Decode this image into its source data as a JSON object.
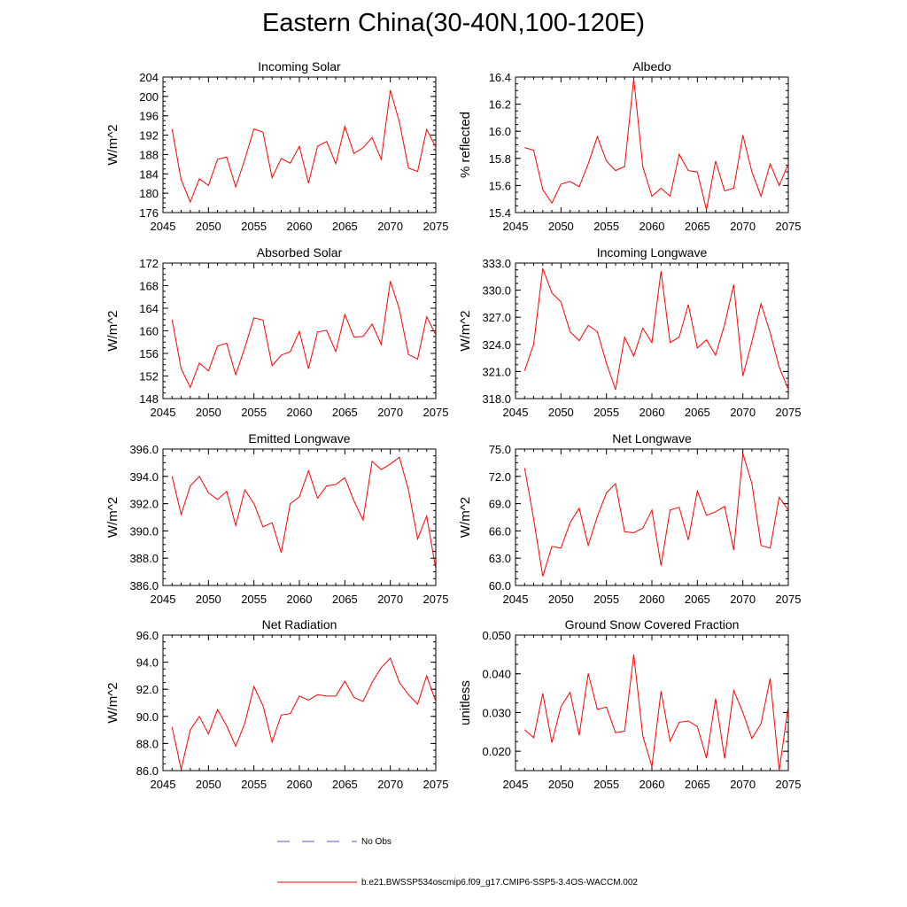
{
  "title": "Eastern China(30-40N,100-120E)",
  "chart_data": [
    {
      "type": "line",
      "title": "Incoming Solar",
      "ylabel": "W/m^2",
      "x": [
        2046,
        2047,
        2048,
        2049,
        2050,
        2051,
        2052,
        2053,
        2054,
        2055,
        2056,
        2057,
        2058,
        2059,
        2060,
        2061,
        2062,
        2063,
        2064,
        2065,
        2066,
        2067,
        2068,
        2069,
        2070,
        2071,
        2072,
        2073,
        2074,
        2075
      ],
      "series": [
        {
          "name": "b.e21.BWSSP534oscmip6.f09_g17.CMIP6-SSP5-3.4OS-WACCM.002",
          "values": [
            193.2,
            182.8,
            178.2,
            183.0,
            181.6,
            187.0,
            187.5,
            181.3,
            187.0,
            193.3,
            192.6,
            183.2,
            187.2,
            186.2,
            189.7,
            182.1,
            189.7,
            190.7,
            186.1,
            193.8,
            188.2,
            189.4,
            191.5,
            187.0,
            201.3,
            194.7,
            185.2,
            184.5,
            193.2,
            189.5
          ]
        }
      ],
      "xlim": [
        2045,
        2075
      ],
      "ylim": [
        176,
        204
      ],
      "yticks": [
        "176",
        "180",
        "184",
        "188",
        "192",
        "196",
        "200",
        "204"
      ]
    },
    {
      "type": "line",
      "title": "Albedo",
      "ylabel": "% reflected",
      "x": [
        2046,
        2047,
        2048,
        2049,
        2050,
        2051,
        2052,
        2053,
        2054,
        2055,
        2056,
        2057,
        2058,
        2059,
        2060,
        2061,
        2062,
        2063,
        2064,
        2065,
        2066,
        2067,
        2068,
        2069,
        2070,
        2071,
        2072,
        2073,
        2074,
        2075
      ],
      "series": [
        {
          "name": "b.e21.BWSSP534oscmip6.f09_g17.CMIP6-SSP5-3.4OS-WACCM.002",
          "values": [
            15.88,
            15.86,
            15.57,
            15.47,
            15.61,
            15.63,
            15.59,
            15.76,
            15.96,
            15.78,
            15.71,
            15.74,
            16.39,
            15.74,
            15.52,
            15.58,
            15.52,
            15.83,
            15.71,
            15.7,
            15.42,
            15.78,
            15.56,
            15.58,
            15.97,
            15.7,
            15.52,
            15.76,
            15.6,
            15.76
          ]
        }
      ],
      "xlim": [
        2045,
        2075
      ],
      "ylim": [
        15.4,
        16.4
      ],
      "yticks": [
        "15.4",
        "15.6",
        "15.8",
        "16.0",
        "16.2",
        "16.4"
      ]
    },
    {
      "type": "line",
      "title": "Absorbed Solar",
      "ylabel": "W/m^2",
      "x": [
        2046,
        2047,
        2048,
        2049,
        2050,
        2051,
        2052,
        2053,
        2054,
        2055,
        2056,
        2057,
        2058,
        2059,
        2060,
        2061,
        2062,
        2063,
        2064,
        2065,
        2066,
        2067,
        2068,
        2069,
        2070,
        2071,
        2072,
        2073,
        2074,
        2075
      ],
      "series": [
        {
          "name": "b.e21.BWSSP534oscmip6.f09_g17.CMIP6-SSP5-3.4OS-WACCM.002",
          "values": [
            162.0,
            153.3,
            150.0,
            154.3,
            152.9,
            157.3,
            157.8,
            152.2,
            157.0,
            162.3,
            161.9,
            153.8,
            155.7,
            156.3,
            159.9,
            153.3,
            159.8,
            160.1,
            156.3,
            162.9,
            158.9,
            159.0,
            161.2,
            157.6,
            168.8,
            163.8,
            155.8,
            155.0,
            162.5,
            159.3
          ]
        }
      ],
      "xlim": [
        2045,
        2075
      ],
      "ylim": [
        148,
        172
      ],
      "yticks": [
        "148",
        "152",
        "156",
        "160",
        "164",
        "168",
        "172"
      ]
    },
    {
      "type": "line",
      "title": "Incoming Longwave",
      "ylabel": "W/m^2",
      "x": [
        2046,
        2047,
        2048,
        2049,
        2050,
        2051,
        2052,
        2053,
        2054,
        2055,
        2056,
        2057,
        2058,
        2059,
        2060,
        2061,
        2062,
        2063,
        2064,
        2065,
        2066,
        2067,
        2068,
        2069,
        2070,
        2071,
        2072,
        2073,
        2074,
        2075
      ],
      "series": [
        {
          "name": "b.e21.BWSSP534oscmip6.f09_g17.CMIP6-SSP5-3.4OS-WACCM.002",
          "values": [
            321.1,
            324.0,
            332.4,
            329.7,
            328.7,
            325.4,
            324.4,
            326.1,
            325.4,
            321.9,
            319.0,
            324.8,
            322.7,
            325.8,
            324.2,
            332.1,
            324.2,
            324.8,
            328.4,
            323.6,
            324.5,
            322.8,
            326.2,
            330.6,
            320.5,
            324.3,
            328.5,
            325.3,
            321.5,
            319.0
          ]
        }
      ],
      "xlim": [
        2045,
        2075
      ],
      "ylim": [
        318.0,
        333.0
      ],
      "yticks": [
        "318.0",
        "321.0",
        "324.0",
        "327.0",
        "330.0",
        "333.0"
      ]
    },
    {
      "type": "line",
      "title": "Emitted Longwave",
      "ylabel": "W/m^2",
      "x": [
        2046,
        2047,
        2048,
        2049,
        2050,
        2051,
        2052,
        2053,
        2054,
        2055,
        2056,
        2057,
        2058,
        2059,
        2060,
        2061,
        2062,
        2063,
        2064,
        2065,
        2066,
        2067,
        2068,
        2069,
        2070,
        2071,
        2072,
        2073,
        2074,
        2075
      ],
      "series": [
        {
          "name": "b.e21.BWSSP534oscmip6.f09_g17.CMIP6-SSP5-3.4OS-WACCM.002",
          "values": [
            394.0,
            391.2,
            393.3,
            394.0,
            392.8,
            392.3,
            392.9,
            390.4,
            393.0,
            392.0,
            390.3,
            390.6,
            388.4,
            392.0,
            392.5,
            394.4,
            392.4,
            393.3,
            393.4,
            393.9,
            392.2,
            390.8,
            395.1,
            394.5,
            394.9,
            395.4,
            393.0,
            389.4,
            391.1,
            387.2
          ]
        }
      ],
      "xlim": [
        2045,
        2075
      ],
      "ylim": [
        386.0,
        396.0
      ],
      "yticks": [
        "386.0",
        "388.0",
        "390.0",
        "392.0",
        "394.0",
        "396.0"
      ]
    },
    {
      "type": "line",
      "title": "Net Longwave",
      "ylabel": "W/m^2",
      "x": [
        2046,
        2047,
        2048,
        2049,
        2050,
        2051,
        2052,
        2053,
        2054,
        2055,
        2056,
        2057,
        2058,
        2059,
        2060,
        2061,
        2062,
        2063,
        2064,
        2065,
        2066,
        2067,
        2068,
        2069,
        2070,
        2071,
        2072,
        2073,
        2074,
        2075
      ],
      "series": [
        {
          "name": "b.e21.BWSSP534oscmip6.f09_g17.CMIP6-SSP5-3.4OS-WACCM.002",
          "values": [
            72.9,
            67.3,
            61.0,
            64.3,
            64.1,
            66.9,
            68.5,
            64.4,
            67.6,
            70.2,
            71.2,
            65.9,
            65.8,
            66.3,
            68.3,
            62.2,
            68.3,
            68.6,
            65.0,
            70.4,
            67.7,
            68.1,
            68.7,
            63.9,
            74.5,
            71.2,
            64.4,
            64.1,
            69.7,
            68.3
          ]
        }
      ],
      "xlim": [
        2045,
        2075
      ],
      "ylim": [
        60.0,
        75.0
      ],
      "yticks": [
        "60.0",
        "63.0",
        "66.0",
        "69.0",
        "72.0",
        "75.0"
      ]
    },
    {
      "type": "line",
      "title": "Net Radiation",
      "ylabel": "W/m^2",
      "x": [
        2046,
        2047,
        2048,
        2049,
        2050,
        2051,
        2052,
        2053,
        2054,
        2055,
        2056,
        2057,
        2058,
        2059,
        2060,
        2061,
        2062,
        2063,
        2064,
        2065,
        2066,
        2067,
        2068,
        2069,
        2070,
        2071,
        2072,
        2073,
        2074,
        2075
      ],
      "series": [
        {
          "name": "b.e21.BWSSP534oscmip6.f09_g17.CMIP6-SSP5-3.4OS-WACCM.002",
          "values": [
            89.2,
            86.1,
            89.0,
            90.0,
            88.7,
            90.5,
            89.3,
            87.8,
            89.5,
            92.2,
            90.8,
            88.1,
            90.1,
            90.2,
            91.5,
            91.2,
            91.6,
            91.5,
            91.5,
            92.6,
            91.4,
            91.1,
            92.5,
            93.6,
            94.3,
            92.5,
            91.6,
            90.9,
            93.0,
            91.1
          ]
        }
      ],
      "xlim": [
        2045,
        2075
      ],
      "ylim": [
        86.0,
        96.0
      ],
      "yticks": [
        "86.0",
        "88.0",
        "90.0",
        "92.0",
        "94.0",
        "96.0"
      ]
    },
    {
      "type": "line",
      "title": "Ground Snow Covered Fraction",
      "ylabel": "unitless",
      "x": [
        2046,
        2047,
        2048,
        2049,
        2050,
        2051,
        2052,
        2053,
        2054,
        2055,
        2056,
        2057,
        2058,
        2059,
        2060,
        2061,
        2062,
        2063,
        2064,
        2065,
        2066,
        2067,
        2068,
        2069,
        2070,
        2071,
        2072,
        2073,
        2074,
        2075
      ],
      "series": [
        {
          "name": "b.e21.BWSSP534oscmip6.f09_g17.CMIP6-SSP5-3.4OS-WACCM.002",
          "values": [
            0.0256,
            0.0235,
            0.0349,
            0.0222,
            0.0315,
            0.0352,
            0.0241,
            0.0401,
            0.0308,
            0.0314,
            0.0248,
            0.0252,
            0.045,
            0.024,
            0.016,
            0.0355,
            0.0226,
            0.0275,
            0.0278,
            0.0264,
            0.0182,
            0.0336,
            0.0181,
            0.0357,
            0.03,
            0.0233,
            0.0271,
            0.0388,
            0.015,
            0.0317
          ]
        }
      ],
      "xlim": [
        2045,
        2075
      ],
      "ylim": [
        0.015,
        0.05
      ],
      "yticks": [
        "0.020",
        "0.030",
        "0.040",
        "0.050"
      ]
    }
  ],
  "xticks": [
    "2045",
    "2050",
    "2055",
    "2060",
    "2065",
    "2070",
    "2075"
  ],
  "legend": {
    "obs_label": "No Obs",
    "obs_color": "#5555cc",
    "model_label": "b.e21.BWSSP534oscmip6.f09_g17.CMIP6-SSP5-3.4OS-WACCM.002",
    "model_color": "#ff0000"
  }
}
